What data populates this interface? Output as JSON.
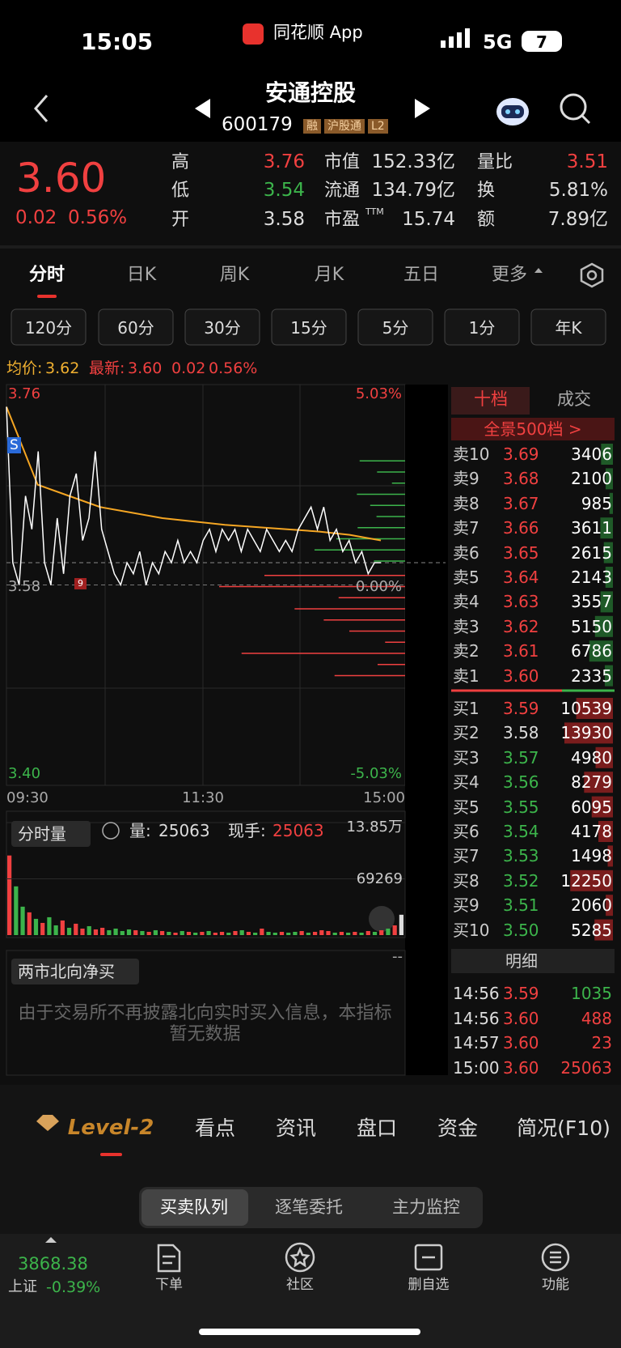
{
  "status_bar": {
    "time": "15:05",
    "app": "同花顺 App",
    "network": "5G",
    "battery": "7"
  },
  "header": {
    "name": "安通控股",
    "code": "600179",
    "badges": [
      "融",
      "沪股通",
      "L2"
    ]
  },
  "quote": {
    "price": "3.60",
    "change": "0.02",
    "change_pct": "0.56%",
    "pe_suffix": "TTM",
    "stats": [
      [
        {
          "label": "高",
          "value": "3.76"
        },
        {
          "label": "市值",
          "value": "152.33亿"
        },
        {
          "label": "量比",
          "value": "3.51"
        }
      ],
      [
        {
          "label": "低",
          "value": "3.54"
        },
        {
          "label": "流通",
          "value": "134.79亿"
        },
        {
          "label": "换",
          "value": "5.81%"
        }
      ],
      [
        {
          "label": "开",
          "value": "3.58"
        },
        {
          "label": "市盈",
          "value": "15.74"
        },
        {
          "label": "额",
          "value": "7.89亿"
        }
      ]
    ]
  },
  "tabs": [
    "分时",
    "日K",
    "周K",
    "月K",
    "五日",
    "更多"
  ],
  "periods": [
    "120分",
    "60分",
    "30分",
    "15分",
    "5分",
    "1分",
    "年K"
  ],
  "chart_data": {
    "type": "line",
    "avg_label": "均价:",
    "avg": "3.62",
    "latest_label": "最新:",
    "latest": "3.60",
    "latest_change": "0.02",
    "latest_pct": "0.56%",
    "ylim": [
      3.4,
      3.76
    ],
    "yticks": [
      {
        "value": 3.76,
        "label": "3.76"
      },
      {
        "value": 3.58,
        "label": "3.58"
      },
      {
        "value": 3.4,
        "label": "3.40"
      }
    ],
    "pct_labels": [
      "5.03%",
      "0.00%",
      "-5.03%"
    ],
    "x_labels": [
      "09:30",
      "11:30",
      "15:00"
    ],
    "markers": [
      "S",
      "9"
    ],
    "price_color": "#ffffff",
    "avg_color": "#f5a623",
    "price": [
      3.74,
      3.6,
      3.58,
      3.66,
      3.63,
      3.7,
      3.6,
      3.58,
      3.64,
      3.59,
      3.66,
      3.68,
      3.62,
      3.64,
      3.7,
      3.63,
      3.61,
      3.59,
      3.58,
      3.6,
      3.59,
      3.61,
      3.58,
      3.6,
      3.59,
      3.61,
      3.6,
      3.62,
      3.6,
      3.61,
      3.6,
      3.62,
      3.63,
      3.61,
      3.63,
      3.62,
      3.63,
      3.61,
      3.63,
      3.62,
      3.61,
      3.63,
      3.62,
      3.61,
      3.62,
      3.61,
      3.63,
      3.64,
      3.65,
      3.63,
      3.65,
      3.62,
      3.63,
      3.61,
      3.62,
      3.6,
      3.61,
      3.59,
      3.6,
      3.6
    ],
    "avg_price": [
      3.74,
      3.67,
      3.66,
      3.65,
      3.645,
      3.64,
      3.637,
      3.634,
      3.632,
      3.63,
      3.628,
      3.625,
      3.62
    ]
  },
  "volume_chart": {
    "title": "分时量",
    "vol_label": "量:",
    "vol": "25063",
    "hand_label": "现手:",
    "hand": "25063",
    "ylim": [
      0,
      138538
    ],
    "yticks": [
      {
        "value": 138538,
        "label": "13.85万"
      },
      69269
    ],
    "values": [
      98000,
      60000,
      35000,
      28000,
      20000,
      15000,
      22000,
      12000,
      18000,
      9000,
      14000,
      8000,
      11000,
      7000,
      9000,
      6000,
      8000,
      5000,
      7000,
      6000,
      5000,
      4000,
      6000,
      5000,
      4000,
      3000,
      5000,
      4000,
      3000,
      4000,
      5000,
      3000,
      4000,
      3000,
      5000,
      6000,
      4000,
      3000,
      8000,
      4000,
      3000,
      4000,
      3000,
      4000,
      5000,
      3000,
      4000,
      6000,
      5000,
      3000,
      4000,
      3000,
      4000,
      3000,
      5000,
      4000,
      6000,
      8000,
      12000,
      25063
    ]
  },
  "north": {
    "title": "两市北向净买",
    "value": "--",
    "message": "由于交易所不再披露北向实时买入信息，本指标暂无数据"
  },
  "order_book": {
    "tabs": [
      "十档",
      "成交"
    ],
    "panorama": "全景500档 >",
    "asks": [
      {
        "label": "卖10",
        "price": "3.69",
        "volume": 3406
      },
      {
        "label": "卖9",
        "price": "3.68",
        "volume": 2100
      },
      {
        "label": "卖8",
        "price": "3.67",
        "volume": 985
      },
      {
        "label": "卖7",
        "price": "3.66",
        "volume": 3611
      },
      {
        "label": "卖6",
        "price": "3.65",
        "volume": 2615
      },
      {
        "label": "卖5",
        "price": "3.64",
        "volume": 2143
      },
      {
        "label": "卖4",
        "price": "3.63",
        "volume": 3557
      },
      {
        "label": "卖3",
        "price": "3.62",
        "volume": 5150
      },
      {
        "label": "卖2",
        "price": "3.61",
        "volume": 6786
      },
      {
        "label": "卖1",
        "price": "3.60",
        "volume": 2335
      }
    ],
    "bids": [
      {
        "label": "买1",
        "price": "3.59",
        "volume": 10539
      },
      {
        "label": "买2",
        "price": "3.58",
        "volume": 13930
      },
      {
        "label": "买3",
        "price": "3.57",
        "volume": 4980
      },
      {
        "label": "买4",
        "price": "3.56",
        "volume": 8279
      },
      {
        "label": "买5",
        "price": "3.55",
        "volume": 6095
      },
      {
        "label": "买6",
        "price": "3.54",
        "volume": 4178
      },
      {
        "label": "买7",
        "price": "3.53",
        "volume": 1498
      },
      {
        "label": "买8",
        "price": "3.52",
        "volume": 12250
      },
      {
        "label": "买9",
        "price": "3.51",
        "volume": 2060
      },
      {
        "label": "买10",
        "price": "3.50",
        "volume": 5285
      }
    ]
  },
  "trades": {
    "title": "明细",
    "rows": [
      {
        "time": "14:56",
        "price": "3.59",
        "volume": 1035,
        "color": "#3cb44b"
      },
      {
        "time": "14:56",
        "price": "3.60",
        "volume": 488,
        "color": "#f04040"
      },
      {
        "time": "14:57",
        "price": "3.60",
        "volume": 23,
        "color": "#f04040"
      },
      {
        "time": "15:00",
        "price": "3.60",
        "volume": 25063,
        "color": "#f04040"
      }
    ]
  },
  "bottom_tabs": [
    "Level-2",
    "看点",
    "资讯",
    "盘口",
    "资金",
    "简况(F10)"
  ],
  "sub_tabs": [
    "买卖队列",
    "逐笔委托",
    "主力监控"
  ],
  "footer": {
    "index_value": "3868.38",
    "index_name": "上证",
    "index_change": "-0.39%",
    "buttons": [
      "下单",
      "社区",
      "删自选",
      "功能"
    ]
  }
}
